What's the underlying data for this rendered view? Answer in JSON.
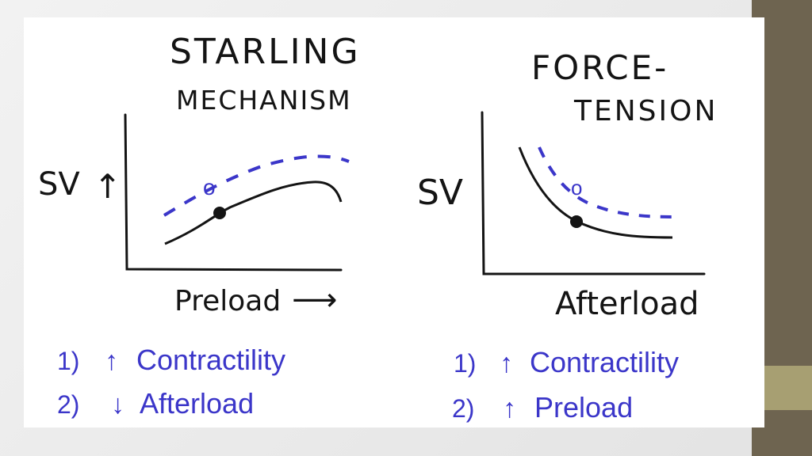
{
  "colors": {
    "ink": "#141414",
    "blue": "#3b36c9",
    "sidebar": "#6e6450",
    "accent": "#a79f72"
  },
  "left": {
    "title_line1": "STARLING",
    "title_line2": "MECHANISM",
    "y_label": "SV",
    "y_arrow": "↑",
    "x_label": "Preload",
    "x_arrow": "⟶",
    "point_open": "o",
    "items": [
      {
        "num": "1)",
        "arrow": "↑",
        "text": "Contractility"
      },
      {
        "num": "2)",
        "arrow": "↓",
        "text": "Afterload"
      }
    ]
  },
  "right": {
    "title_line1": "FORCE-",
    "title_line2": "TENSION",
    "y_label": "SV",
    "x_label": "Afterload",
    "point_open": "o",
    "items": [
      {
        "num": "1)",
        "arrow": "↑",
        "text": "Contractility"
      },
      {
        "num": "2)",
        "arrow": "↑",
        "text": "Preload"
      }
    ]
  }
}
